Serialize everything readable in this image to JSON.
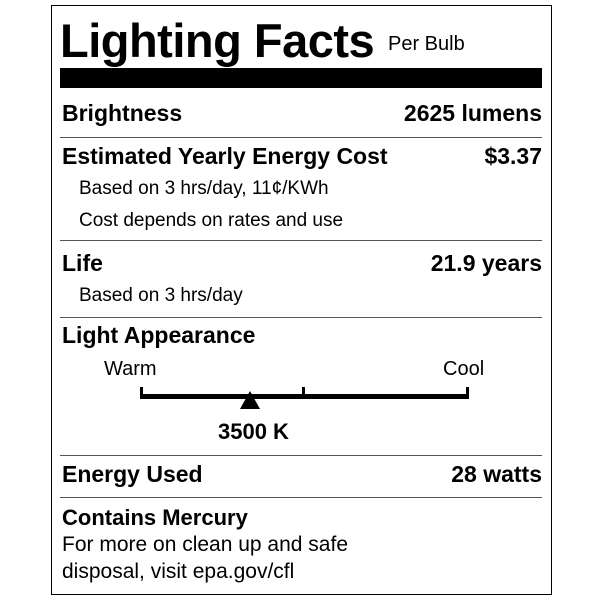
{
  "header": {
    "title": "Lighting Facts",
    "subtitle": "Per Bulb"
  },
  "brightness": {
    "label": "Brightness",
    "value": "2625 lumens"
  },
  "energy_cost": {
    "label": "Estimated Yearly Energy Cost",
    "value": "$3.37",
    "notes": [
      "Based on 3 hrs/day, 11¢/KWh",
      "Cost depends on rates and use"
    ]
  },
  "life": {
    "label": "Life",
    "value": "21.9 years",
    "note": "Based on 3 hrs/day"
  },
  "light_appearance": {
    "label": "Light Appearance",
    "warm_label": "Warm",
    "cool_label": "Cool",
    "value": "3500 K",
    "marker_fraction": 0.335
  },
  "energy_used": {
    "label": "Energy Used",
    "value": "28 watts"
  },
  "mercury": {
    "label": "Contains Mercury",
    "lines": [
      "For more on clean up and safe",
      "disposal, visit epa.gov/cfl"
    ]
  }
}
